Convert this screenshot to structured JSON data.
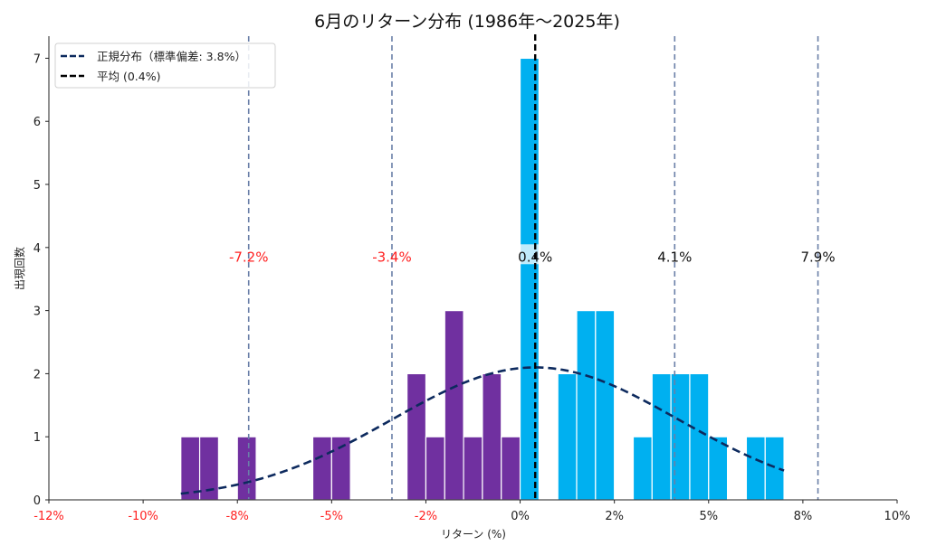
{
  "chart_data": {
    "type": "bar",
    "title": "6月のリターン分布 (1986年～2025年)",
    "xlabel": "リターン (%)",
    "ylabel": "出現回数",
    "xlim": [
      -12.5,
      10
    ],
    "ylim": [
      0,
      7.35
    ],
    "x_ticks": [
      -12.5,
      -10,
      -7.5,
      -5,
      -2.5,
      0,
      2.5,
      5,
      7.5,
      10
    ],
    "x_tick_labels": [
      "-12%",
      "-10%",
      "-8%",
      "-5%",
      "-2%",
      "0%",
      "2%",
      "5%",
      "8%",
      "10%"
    ],
    "y_ticks": [
      0,
      1,
      2,
      3,
      4,
      5,
      6,
      7
    ],
    "y_tick_labels": [
      "0",
      "1",
      "2",
      "3",
      "4",
      "5",
      "6",
      "7"
    ],
    "grid": false,
    "legend_position": "top-left",
    "bin_width": 0.5,
    "bins": [
      {
        "start": -9.0,
        "count": 1
      },
      {
        "start": -8.5,
        "count": 1
      },
      {
        "start": -7.5,
        "count": 1
      },
      {
        "start": -5.5,
        "count": 1
      },
      {
        "start": -5.0,
        "count": 1
      },
      {
        "start": -3.0,
        "count": 2
      },
      {
        "start": -2.5,
        "count": 1
      },
      {
        "start": -2.0,
        "count": 3
      },
      {
        "start": -1.5,
        "count": 1
      },
      {
        "start": -1.0,
        "count": 2
      },
      {
        "start": -0.5,
        "count": 1
      },
      {
        "start": 0.0,
        "count": 7
      },
      {
        "start": 1.0,
        "count": 2
      },
      {
        "start": 1.5,
        "count": 3
      },
      {
        "start": 2.0,
        "count": 3
      },
      {
        "start": 3.0,
        "count": 1
      },
      {
        "start": 3.5,
        "count": 2
      },
      {
        "start": 4.0,
        "count": 2
      },
      {
        "start": 4.5,
        "count": 2
      },
      {
        "start": 5.0,
        "count": 1
      },
      {
        "start": 6.0,
        "count": 1
      },
      {
        "start": 6.5,
        "count": 1
      }
    ],
    "negative_color": "#7030a0",
    "positive_color": "#00b0f0",
    "normal_curve": {
      "label": "正規分布（標準偏差: 3.8%）",
      "mean": 0.4,
      "std": 3.8,
      "n": 40,
      "x_range": [
        -9.0,
        7.0
      ],
      "color": "#0d2a5e"
    },
    "mean_line": {
      "label": "平均 (0.4%)",
      "value": 0.4,
      "color": "#000000"
    },
    "sd_lines": [
      {
        "value": -7.2,
        "label": "-7.2%",
        "color": "#ff2020"
      },
      {
        "value": -3.4,
        "label": "-3.4%",
        "color": "#ff2020"
      },
      {
        "value": 0.4,
        "label": "0.4%",
        "color": "#111111"
      },
      {
        "value": 4.1,
        "label": "4.1%",
        "color": "#111111"
      },
      {
        "value": 7.9,
        "label": "7.9%",
        "color": "#111111"
      }
    ],
    "sd_line_color": "#6a7fa8",
    "sd_label_y": 3.85,
    "negative_tick_color": "#ff2020",
    "positive_tick_color": "#222222"
  }
}
